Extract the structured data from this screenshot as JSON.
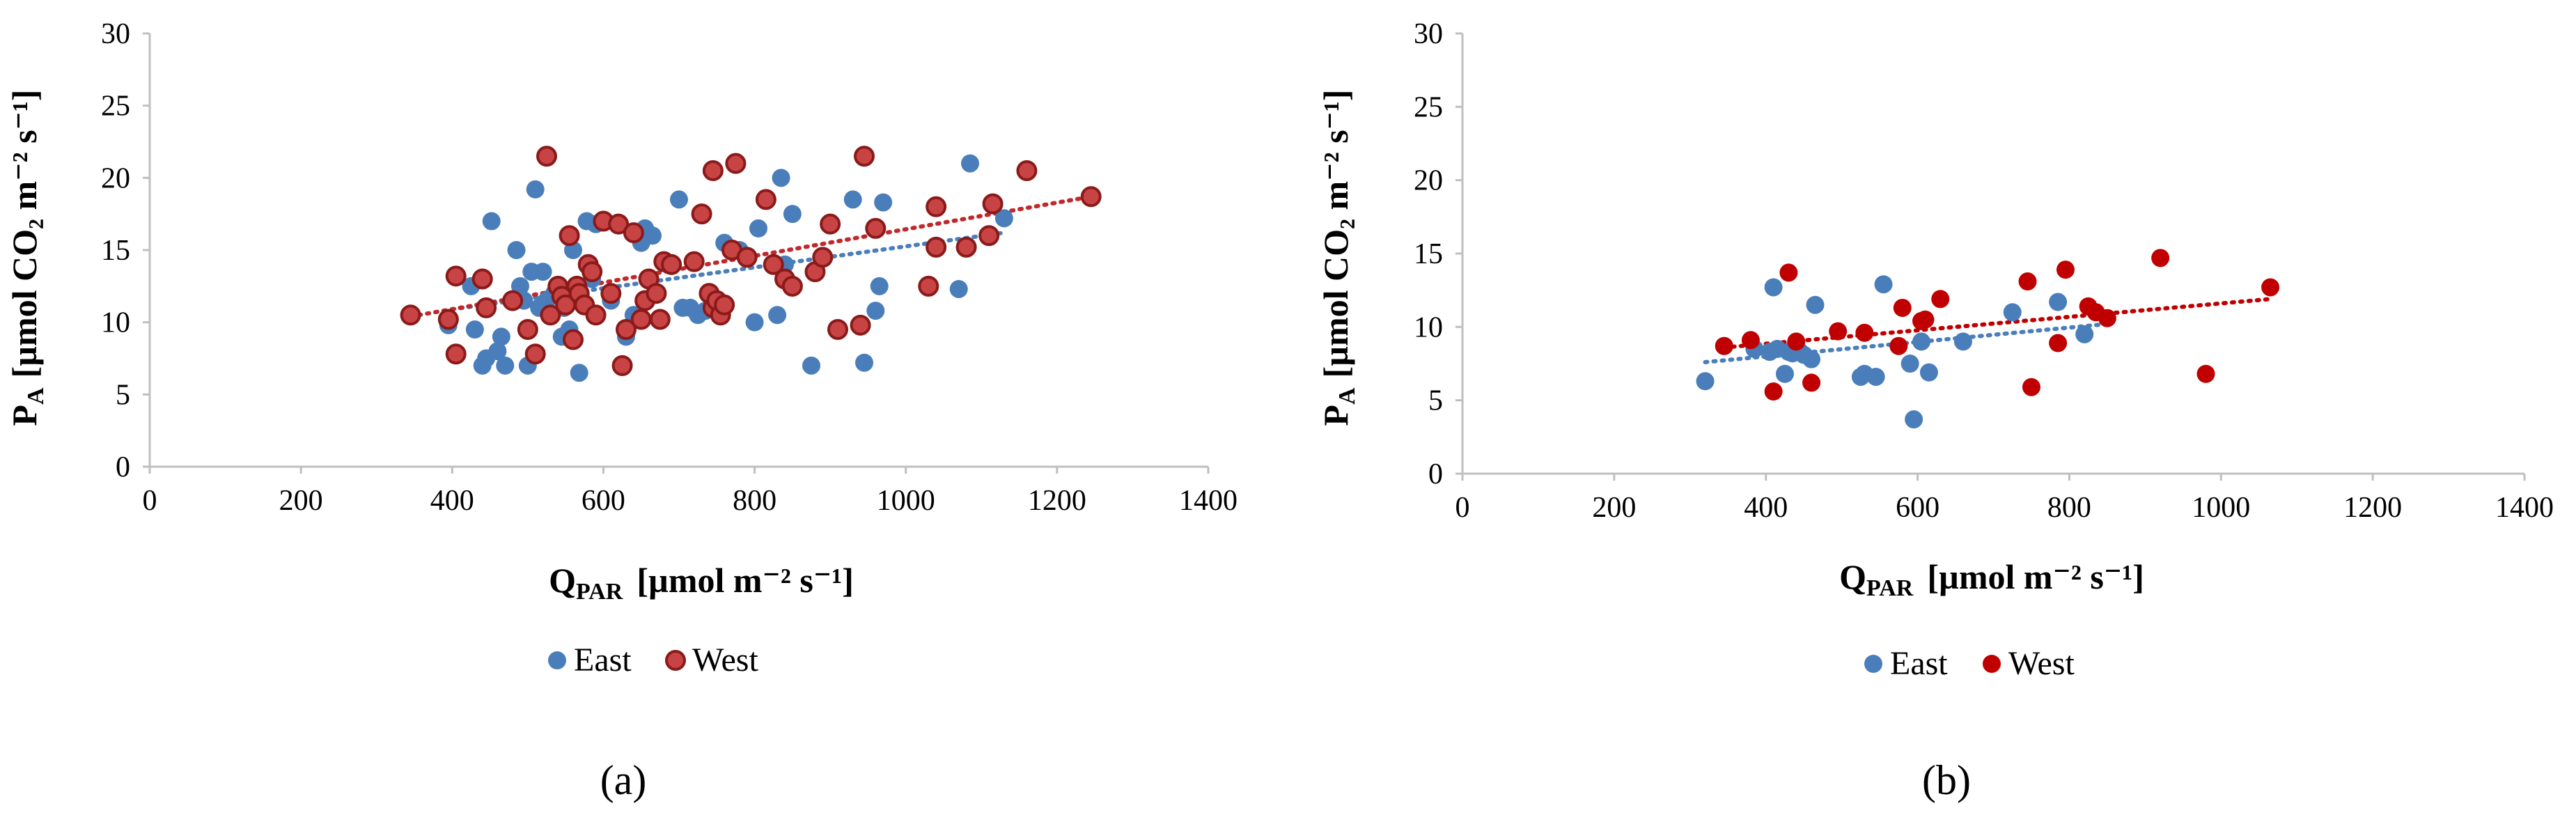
{
  "chart_data": [
    {
      "type": "scatter",
      "panel_label": "(a)",
      "xlabel": "Q",
      "xlabel_sub": "PAR",
      "xlabel_unit": "[µmol m⁻² s⁻¹]",
      "ylabel": "P",
      "ylabel_sub": "A",
      "ylabel_unit": "[µmol CO₂ m⁻² s⁻¹]",
      "xlim": [
        0,
        1400
      ],
      "ylim": [
        0,
        30
      ],
      "xticks": [
        0,
        200,
        400,
        600,
        800,
        1000,
        1200,
        1400
      ],
      "yticks": [
        0,
        5,
        10,
        15,
        20,
        25,
        30
      ],
      "legend_position": "bottom",
      "grid": false,
      "series": [
        {
          "name": "East",
          "color": "#4a7ebb",
          "marker": "filled-circle",
          "trendline": {
            "x": [
              400,
              1130
            ],
            "y": [
              10.9,
              16.2
            ]
          },
          "x": [
            395,
            425,
            430,
            440,
            445,
            452,
            460,
            465,
            470,
            485,
            490,
            495,
            500,
            505,
            510,
            515,
            520,
            525,
            535,
            545,
            548,
            555,
            560,
            568,
            578,
            585,
            590,
            600,
            610,
            630,
            640,
            650,
            655,
            665,
            700,
            705,
            715,
            725,
            735,
            745,
            760,
            780,
            790,
            800,
            805,
            830,
            835,
            840,
            850,
            875,
            930,
            945,
            960,
            965,
            970,
            1070,
            1085,
            1130
          ],
          "y": [
            9.8,
            12.5,
            9.5,
            7,
            7.5,
            17,
            8,
            9,
            7,
            15,
            12.5,
            11.5,
            7,
            13.5,
            19.2,
            11,
            13.5,
            11.5,
            12,
            9,
            11,
            9.5,
            15,
            6.5,
            17,
            13,
            16.8,
            17,
            11.5,
            9,
            10.5,
            15.5,
            16.5,
            16,
            18.5,
            11,
            11,
            10.5,
            10.8,
            11,
            15.5,
            15,
            14.5,
            10,
            16.5,
            10.5,
            20,
            14,
            17.5,
            7,
            18.5,
            7.2,
            10.8,
            12.5,
            18.3,
            12.3,
            21,
            17.2
          ]
        },
        {
          "name": "West",
          "color": "#c0292b",
          "marker": "ringed-circle",
          "trendline": {
            "x": [
              345,
              1245
            ],
            "y": [
              10.4,
              18.7
            ]
          },
          "x": [
            345,
            395,
            405,
            405,
            440,
            445,
            480,
            500,
            510,
            525,
            530,
            540,
            545,
            550,
            555,
            560,
            565,
            568,
            575,
            580,
            585,
            590,
            600,
            610,
            620,
            625,
            630,
            640,
            650,
            655,
            660,
            670,
            675,
            680,
            690,
            720,
            730,
            740,
            745,
            745,
            750,
            755,
            760,
            770,
            775,
            790,
            815,
            825,
            840,
            850,
            880,
            890,
            900,
            910,
            940,
            945,
            960,
            1030,
            1040,
            1040,
            1080,
            1110,
            1115,
            1160,
            1245
          ],
          "y": [
            10.5,
            10.2,
            13.2,
            7.8,
            13,
            11,
            11.5,
            9.5,
            7.8,
            21.5,
            10.5,
            12.5,
            11.8,
            11.2,
            16,
            8.8,
            12.5,
            12,
            11.2,
            14,
            13.5,
            10.5,
            17,
            12,
            16.8,
            7,
            9.5,
            16.2,
            10.2,
            11.5,
            13,
            12,
            10.2,
            14.2,
            14,
            14.2,
            17.5,
            12,
            11,
            20.5,
            11.5,
            10.5,
            11.2,
            15,
            21,
            14.5,
            18.5,
            14,
            13,
            12.5,
            13.5,
            14.5,
            16.8,
            9.5,
            9.8,
            21.5,
            16.5,
            12.5,
            18,
            15.2,
            15.2,
            16,
            18.2,
            20.5,
            18.7
          ]
        }
      ]
    },
    {
      "type": "scatter",
      "panel_label": "(b)",
      "xlabel": "Q",
      "xlabel_sub": "PAR",
      "xlabel_unit": "[µmol m⁻² s⁻¹]",
      "ylabel": "P",
      "ylabel_sub": "A",
      "ylabel_unit": "[µmol CO₂ m⁻² s⁻¹]",
      "xlim": [
        0,
        1400
      ],
      "ylim": [
        0,
        30
      ],
      "xticks": [
        0,
        200,
        400,
        600,
        800,
        1000,
        1200,
        1400
      ],
      "yticks": [
        0,
        5,
        10,
        15,
        20,
        25,
        30
      ],
      "legend_position": "bottom",
      "grid": false,
      "series": [
        {
          "name": "East",
          "color": "#4a7ebb",
          "marker": "filled-circle",
          "trendline": {
            "x": [
              320,
              850
            ],
            "y": [
              7.6,
              10.2
            ]
          },
          "x": [
            320,
            345,
            385,
            405,
            410,
            415,
            425,
            430,
            435,
            445,
            450,
            460,
            465,
            525,
            530,
            545,
            555,
            590,
            595,
            605,
            615,
            660,
            725,
            785,
            820
          ],
          "y": [
            6.3,
            8.7,
            8.5,
            8.3,
            12.7,
            8.5,
            6.8,
            8.3,
            8.2,
            8.3,
            8.1,
            7.8,
            11.5,
            6.6,
            6.8,
            6.6,
            12.9,
            7.5,
            3.7,
            9,
            6.9,
            9,
            11,
            11.7,
            9.5
          ]
        },
        {
          "name": "West",
          "color": "#c00000",
          "marker": "filled-circle",
          "trendline": {
            "x": [
              345,
              1065
            ],
            "y": [
              8.6,
              11.9
            ]
          },
          "x": [
            345,
            380,
            410,
            430,
            440,
            460,
            495,
            530,
            575,
            580,
            605,
            610,
            630,
            745,
            750,
            785,
            795,
            825,
            835,
            850,
            920,
            980,
            1065
          ],
          "y": [
            8.7,
            9.1,
            5.6,
            13.7,
            9,
            6.2,
            9.7,
            9.6,
            8.7,
            11.3,
            10.4,
            10.5,
            11.9,
            13.1,
            5.9,
            8.9,
            13.9,
            11.4,
            11,
            10.6,
            14.7,
            6.8,
            12.7
          ]
        }
      ]
    }
  ]
}
